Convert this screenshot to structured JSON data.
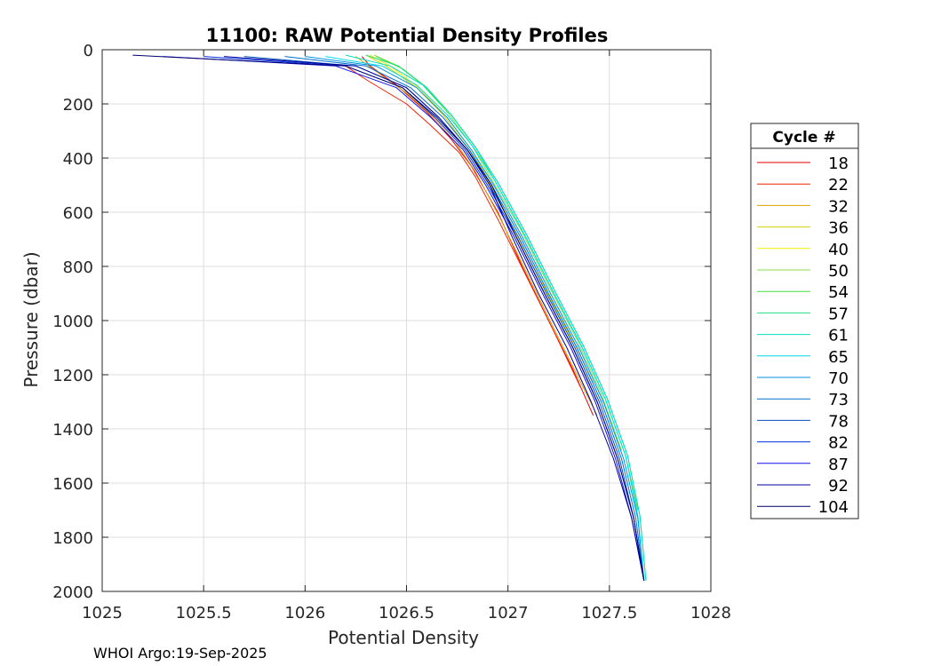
{
  "footer": "WHOI Argo:19-Sep-2025",
  "chart_data": {
    "type": "line",
    "title": "11100: RAW Potential Density Profiles",
    "xlabel": "Potential Density",
    "ylabel": "Pressure (dbar)",
    "xlim": [
      1025,
      1028
    ],
    "ylim": [
      0,
      2000
    ],
    "y_reversed": true,
    "grid": true,
    "x_ticks": [
      "1025",
      "1025.5",
      "1026",
      "1026.5",
      "1027",
      "1027.5",
      "1028"
    ],
    "x_tick_values": [
      1025,
      1025.5,
      1026,
      1026.5,
      1027,
      1027.5,
      1028
    ],
    "y_ticks": [
      "0",
      "200",
      "400",
      "600",
      "800",
      "1000",
      "1200",
      "1400",
      "1600",
      "1800",
      "2000"
    ],
    "y_tick_values": [
      0,
      200,
      400,
      600,
      800,
      1000,
      1200,
      1400,
      1600,
      1800,
      2000
    ],
    "legend_title": "Cycle #",
    "legend_position": "right-outside",
    "series": [
      {
        "name": "18",
        "color": "#e60000",
        "x": [
          1026.28,
          1026.32,
          1026.45,
          1026.6,
          1026.72,
          1026.82,
          1026.95,
          1027.07,
          1027.2,
          1027.32,
          1027.42
        ],
        "y": [
          25,
          60,
          130,
          230,
          330,
          430,
          600,
          800,
          1000,
          1180,
          1350
        ]
      },
      {
        "name": "22",
        "color": "#f02000",
        "x": [
          1026.2,
          1026.3,
          1026.5,
          1026.62,
          1026.76,
          1026.84,
          1026.96,
          1027.08,
          1027.22,
          1027.36
        ],
        "y": [
          60,
          110,
          200,
          280,
          380,
          470,
          640,
          820,
          1030,
          1250
        ]
      },
      {
        "name": "32",
        "color": "#e0a000",
        "x": [
          1026.25,
          1026.35,
          1026.5,
          1026.62,
          1026.74,
          1026.84,
          1026.96,
          1027.09,
          1027.22,
          1027.34,
          1027.44
        ],
        "y": [
          25,
          80,
          160,
          240,
          340,
          450,
          620,
          820,
          1020,
          1200,
          1350
        ]
      },
      {
        "name": "36",
        "color": "#d8d000",
        "x": [
          1026.3,
          1026.4,
          1026.55,
          1026.68,
          1026.8,
          1026.9,
          1027.02,
          1027.16,
          1027.3,
          1027.42
        ],
        "y": [
          20,
          60,
          140,
          240,
          360,
          480,
          650,
          850,
          1040,
          1230
        ]
      },
      {
        "name": "40",
        "color": "#f0f000",
        "x": [
          1026.32,
          1026.42,
          1026.56,
          1026.7,
          1026.82,
          1026.92,
          1027.04,
          1027.18,
          1027.32
        ],
        "y": [
          20,
          60,
          140,
          250,
          370,
          500,
          680,
          880,
          1080
        ]
      },
      {
        "name": "50",
        "color": "#80e040",
        "x": [
          1026.34,
          1026.46,
          1026.58,
          1026.7,
          1026.82,
          1026.92,
          1027.06,
          1027.2,
          1027.34,
          1027.46,
          1027.56
        ],
        "y": [
          20,
          60,
          130,
          230,
          350,
          480,
          660,
          870,
          1070,
          1270,
          1480
        ]
      },
      {
        "name": "54",
        "color": "#40e040",
        "x": [
          1026.35,
          1026.48,
          1026.6,
          1026.72,
          1026.84,
          1026.94,
          1027.08,
          1027.22,
          1027.36,
          1027.48,
          1027.58,
          1027.64
        ],
        "y": [
          25,
          70,
          140,
          240,
          360,
          490,
          680,
          890,
          1090,
          1290,
          1500,
          1700
        ]
      },
      {
        "name": "57",
        "color": "#20e080",
        "x": [
          1026.3,
          1026.46,
          1026.6,
          1026.72,
          1026.84,
          1026.95,
          1027.09,
          1027.23,
          1027.37,
          1027.49,
          1027.59,
          1027.65,
          1027.68
        ],
        "y": [
          20,
          60,
          140,
          240,
          360,
          490,
          680,
          890,
          1090,
          1290,
          1500,
          1720,
          1960
        ]
      },
      {
        "name": "61",
        "color": "#00e0c0",
        "x": [
          1026.2,
          1026.42,
          1026.58,
          1026.72,
          1026.84,
          1026.95,
          1027.09,
          1027.23,
          1027.37,
          1027.49,
          1027.59,
          1027.65,
          1027.68
        ],
        "y": [
          20,
          60,
          130,
          240,
          360,
          490,
          680,
          890,
          1090,
          1290,
          1500,
          1720,
          1960
        ]
      },
      {
        "name": "65",
        "color": "#00d8e8",
        "x": [
          1026.1,
          1026.38,
          1026.55,
          1026.7,
          1026.83,
          1026.94,
          1027.08,
          1027.22,
          1027.36,
          1027.48,
          1027.58,
          1027.64,
          1027.67
        ],
        "y": [
          25,
          60,
          130,
          240,
          360,
          490,
          680,
          890,
          1090,
          1290,
          1500,
          1720,
          1960
        ]
      },
      {
        "name": "70",
        "color": "#0090e0",
        "x": [
          1026.0,
          1026.35,
          1026.55,
          1026.7,
          1026.82,
          1026.93,
          1027.07,
          1027.21,
          1027.35,
          1027.47,
          1027.57,
          1027.64,
          1027.67
        ],
        "y": [
          25,
          60,
          140,
          250,
          370,
          500,
          690,
          900,
          1100,
          1300,
          1510,
          1730,
          1960
        ]
      },
      {
        "name": "73",
        "color": "#0070d0",
        "x": [
          1025.9,
          1026.3,
          1026.52,
          1026.68,
          1026.81,
          1026.92,
          1027.06,
          1027.2,
          1027.34,
          1027.46,
          1027.56,
          1027.63,
          1027.67
        ],
        "y": [
          25,
          60,
          140,
          250,
          370,
          500,
          690,
          900,
          1100,
          1300,
          1510,
          1730,
          1960
        ]
      },
      {
        "name": "78",
        "color": "#0050c0",
        "x": [
          1025.7,
          1026.25,
          1026.5,
          1026.66,
          1026.8,
          1026.91,
          1027.05,
          1027.19,
          1027.33,
          1027.45,
          1027.55,
          1027.62,
          1027.67
        ],
        "y": [
          25,
          60,
          140,
          250,
          370,
          500,
          690,
          900,
          1100,
          1300,
          1510,
          1730,
          1960
        ]
      },
      {
        "name": "82",
        "color": "#0030e0",
        "x": [
          1025.5,
          1026.2,
          1026.48,
          1026.64,
          1026.79,
          1026.9,
          1027.04,
          1027.18,
          1027.32,
          1027.44,
          1027.54,
          1027.62,
          1027.67
        ],
        "y": [
          25,
          60,
          140,
          250,
          370,
          500,
          690,
          900,
          1100,
          1300,
          1510,
          1730,
          1960
        ]
      },
      {
        "name": "87",
        "color": "#1010f0",
        "x": [
          1025.3,
          1026.15,
          1026.45,
          1026.62,
          1026.78,
          1026.89,
          1027.03,
          1027.17,
          1027.31,
          1027.43,
          1027.53,
          1027.61,
          1027.67
        ],
        "y": [
          25,
          60,
          140,
          250,
          370,
          500,
          690,
          900,
          1100,
          1300,
          1510,
          1730,
          1960
        ]
      },
      {
        "name": "92",
        "color": "#0000a0",
        "x": [
          1025.6,
          1026.25,
          1026.5,
          1026.66,
          1026.8,
          1026.91,
          1027.02,
          1027.15,
          1027.29,
          1027.41,
          1027.52,
          1027.61,
          1027.67
        ],
        "y": [
          25,
          60,
          140,
          250,
          370,
          500,
          690,
          900,
          1100,
          1300,
          1510,
          1730,
          1960
        ]
      },
      {
        "name": "104",
        "color": "#000070",
        "x": [
          1025.15,
          1026.2,
          1026.48,
          1026.65,
          1026.8,
          1026.92,
          1027.04,
          1027.18,
          1027.32,
          1027.44,
          1027.54,
          1027.62,
          1027.67
        ],
        "y": [
          20,
          60,
          140,
          250,
          370,
          500,
          690,
          900,
          1100,
          1300,
          1510,
          1730,
          1960
        ]
      }
    ]
  }
}
